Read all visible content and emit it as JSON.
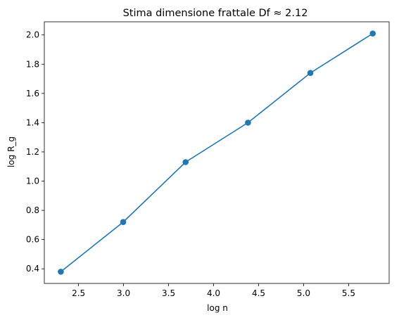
{
  "chart_data": {
    "type": "line",
    "title": "Stima dimensione frattale Df ≈ 2.12",
    "xlabel": "log n",
    "ylabel": "log R_g",
    "xlim": [
      2.12,
      5.95
    ],
    "ylim": [
      0.3,
      2.09
    ],
    "xticks": [
      2.5,
      3.0,
      3.5,
      4.0,
      4.5,
      5.0,
      5.5
    ],
    "yticks": [
      0.4,
      0.6,
      0.8,
      1.0,
      1.2,
      1.4,
      1.6,
      1.8,
      2.0
    ],
    "grid": false,
    "markers": "circle",
    "color": "#1f77b4",
    "series": [
      {
        "x": [
          2.303,
          2.996,
          3.689,
          4.382,
          5.075,
          5.768
        ],
        "y": [
          0.38,
          0.72,
          1.13,
          1.4,
          1.74,
          2.01
        ]
      }
    ]
  }
}
